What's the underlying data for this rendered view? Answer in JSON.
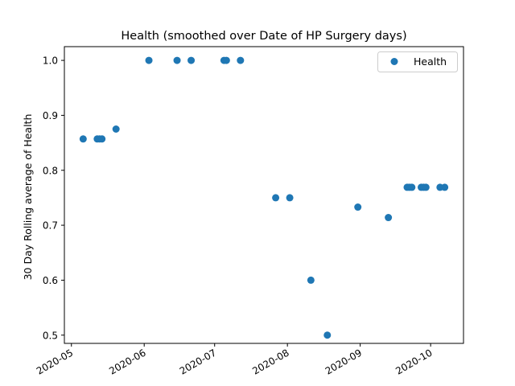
{
  "chart_data": {
    "type": "scatter",
    "title": "Health  (smoothed over Date of HP Surgery days)",
    "xlabel": "",
    "ylabel": "30 Day Rolling average of Health",
    "x_axis_type": "date",
    "xlim": [
      "2020-04-28",
      "2020-10-15"
    ],
    "ylim": [
      0.485,
      1.025
    ],
    "x_ticks": [
      "2020-05-01",
      "2020-06-01",
      "2020-07-01",
      "2020-08-01",
      "2020-09-01",
      "2020-10-01"
    ],
    "x_tick_labels": [
      "2020-05",
      "2020-06",
      "2020-07",
      "2020-08",
      "2020-09",
      "2020-10"
    ],
    "y_ticks": [
      0.5,
      0.6,
      0.7,
      0.8,
      0.9,
      1.0
    ],
    "y_tick_labels": [
      "0.5",
      "0.6",
      "0.7",
      "0.8",
      "0.9",
      "1.0"
    ],
    "grid": false,
    "legend_position": "top-right",
    "series": [
      {
        "name": "Health",
        "color": "#1f77b4",
        "marker": "circle",
        "points": [
          {
            "x": "2020-05-06",
            "y": 0.857
          },
          {
            "x": "2020-05-12",
            "y": 0.857
          },
          {
            "x": "2020-05-13",
            "y": 0.857
          },
          {
            "x": "2020-05-14",
            "y": 0.857
          },
          {
            "x": "2020-05-20",
            "y": 0.875
          },
          {
            "x": "2020-06-03",
            "y": 1.0
          },
          {
            "x": "2020-06-15",
            "y": 1.0
          },
          {
            "x": "2020-06-21",
            "y": 1.0
          },
          {
            "x": "2020-07-05",
            "y": 1.0
          },
          {
            "x": "2020-07-06",
            "y": 1.0
          },
          {
            "x": "2020-07-12",
            "y": 1.0
          },
          {
            "x": "2020-07-27",
            "y": 0.75
          },
          {
            "x": "2020-08-02",
            "y": 0.75
          },
          {
            "x": "2020-08-11",
            "y": 0.6
          },
          {
            "x": "2020-08-18",
            "y": 0.5
          },
          {
            "x": "2020-08-31",
            "y": 0.733
          },
          {
            "x": "2020-09-13",
            "y": 0.714
          },
          {
            "x": "2020-09-21",
            "y": 0.769
          },
          {
            "x": "2020-09-22",
            "y": 0.769
          },
          {
            "x": "2020-09-23",
            "y": 0.769
          },
          {
            "x": "2020-09-27",
            "y": 0.769
          },
          {
            "x": "2020-09-28",
            "y": 0.769
          },
          {
            "x": "2020-09-29",
            "y": 0.769
          },
          {
            "x": "2020-10-05",
            "y": 0.769
          },
          {
            "x": "2020-10-07",
            "y": 0.769
          }
        ]
      }
    ]
  }
}
